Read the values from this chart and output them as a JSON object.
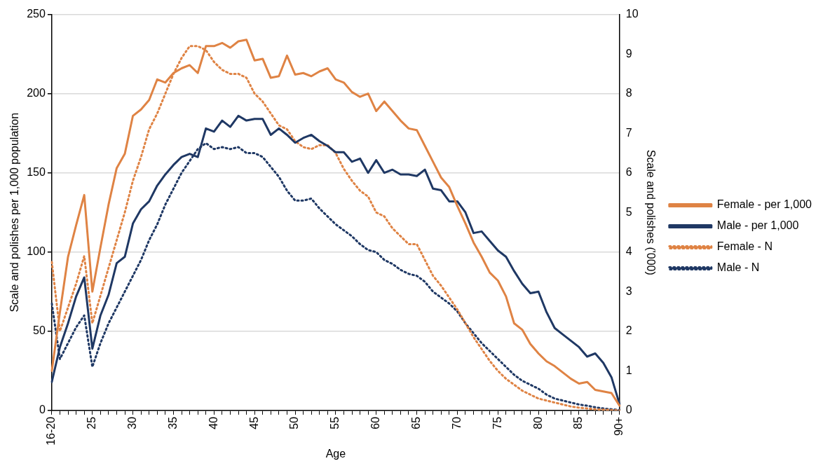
{
  "chart_data": {
    "type": "line",
    "xlabel": "Age",
    "ylabel": "Scale and polishes per 1,000 population",
    "y2label": "Scale and polishes ('000)",
    "categories": [
      "16-20",
      null,
      null,
      null,
      null,
      "25",
      null,
      null,
      null,
      null,
      "30",
      null,
      null,
      null,
      null,
      "35",
      null,
      null,
      null,
      null,
      "40",
      null,
      null,
      null,
      null,
      "45",
      null,
      null,
      null,
      null,
      "50",
      null,
      null,
      null,
      null,
      "55",
      null,
      null,
      null,
      null,
      "60",
      null,
      null,
      null,
      null,
      "65",
      null,
      null,
      null,
      null,
      "70",
      null,
      null,
      null,
      null,
      "75",
      null,
      null,
      null,
      null,
      "80",
      null,
      null,
      null,
      null,
      "85",
      null,
      null,
      null,
      null,
      "90+"
    ],
    "ylim": [
      0,
      250
    ],
    "yticks": [
      0,
      50,
      100,
      150,
      200,
      250
    ],
    "y2lim": [
      0,
      10
    ],
    "y2ticks": [
      0,
      1,
      2,
      3,
      4,
      5,
      6,
      7,
      8,
      9,
      10
    ],
    "grid": "y",
    "legend": "right",
    "marker": "none",
    "series": [
      {
        "name": "Female - per 1,000",
        "color": "#df8344",
        "line_style": "solid",
        "values": [
          25,
          62,
          97,
          117,
          136,
          75,
          103,
          130,
          153,
          162,
          186,
          190,
          196,
          209,
          207,
          213,
          216,
          218,
          213,
          230,
          230,
          232,
          229,
          233,
          234,
          221,
          222,
          210,
          211,
          224,
          212,
          213,
          211,
          214,
          216,
          209,
          207,
          201,
          198,
          200,
          189,
          195,
          189,
          183,
          178,
          177,
          167,
          157,
          147,
          141,
          129,
          118,
          106,
          97,
          87,
          82,
          72,
          55,
          51,
          42,
          36,
          31,
          28,
          24,
          20,
          17,
          18,
          13,
          12,
          11,
          3
        ]
      },
      {
        "name": "Male - per 1,000",
        "color": "#1f3864",
        "line_style": "solid",
        "values": [
          18,
          40,
          55,
          72,
          84,
          39,
          60,
          73,
          93,
          97,
          118,
          127,
          132,
          142,
          149,
          155,
          160,
          162,
          160,
          178,
          176,
          183,
          179,
          186,
          183,
          184,
          184,
          174,
          178,
          174,
          169,
          172,
          174,
          170,
          167,
          163,
          163,
          157,
          159,
          150,
          158,
          150,
          152,
          149,
          149,
          148,
          152,
          140,
          139,
          132,
          132,
          125,
          112,
          113,
          107,
          101,
          97,
          88,
          80,
          74,
          75,
          62,
          52,
          48,
          44,
          40,
          34,
          36,
          30,
          21,
          4
        ]
      },
      {
        "name": "Female - N",
        "color": "#df8344",
        "line_style": "dotted",
        "axis": "y2",
        "values": [
          3.75,
          2.0,
          2.6,
          3.2,
          3.9,
          2.2,
          2.9,
          3.6,
          4.3,
          5.0,
          5.8,
          6.4,
          7.1,
          7.5,
          8.0,
          8.5,
          8.9,
          9.2,
          9.2,
          9.1,
          8.8,
          8.6,
          8.5,
          8.5,
          8.4,
          8.0,
          7.8,
          7.5,
          7.2,
          7.1,
          6.8,
          6.65,
          6.6,
          6.7,
          6.7,
          6.5,
          6.1,
          5.8,
          5.55,
          5.4,
          5.0,
          4.9,
          4.6,
          4.4,
          4.2,
          4.2,
          3.8,
          3.4,
          3.15,
          2.85,
          2.55,
          2.2,
          1.85,
          1.55,
          1.25,
          1.0,
          0.8,
          0.65,
          0.5,
          0.4,
          0.3,
          0.25,
          0.2,
          0.15,
          0.1,
          0.07,
          0.05,
          0.03,
          0.02,
          0.01,
          0.0
        ]
      },
      {
        "name": "Male - N",
        "color": "#1f3864",
        "line_style": "dotted",
        "axis": "y2",
        "values": [
          2.7,
          1.3,
          1.7,
          2.1,
          2.4,
          1.1,
          1.7,
          2.2,
          2.6,
          3.0,
          3.4,
          3.8,
          4.3,
          4.7,
          5.2,
          5.6,
          6.0,
          6.3,
          6.6,
          6.75,
          6.6,
          6.65,
          6.6,
          6.65,
          6.5,
          6.5,
          6.4,
          6.15,
          5.9,
          5.55,
          5.3,
          5.3,
          5.35,
          5.1,
          4.9,
          4.7,
          4.55,
          4.4,
          4.2,
          4.05,
          4.0,
          3.8,
          3.7,
          3.55,
          3.45,
          3.4,
          3.25,
          3.0,
          2.85,
          2.7,
          2.5,
          2.2,
          1.95,
          1.7,
          1.5,
          1.3,
          1.1,
          0.9,
          0.75,
          0.65,
          0.55,
          0.4,
          0.3,
          0.25,
          0.2,
          0.15,
          0.12,
          0.08,
          0.05,
          0.03,
          0.01
        ]
      }
    ]
  }
}
